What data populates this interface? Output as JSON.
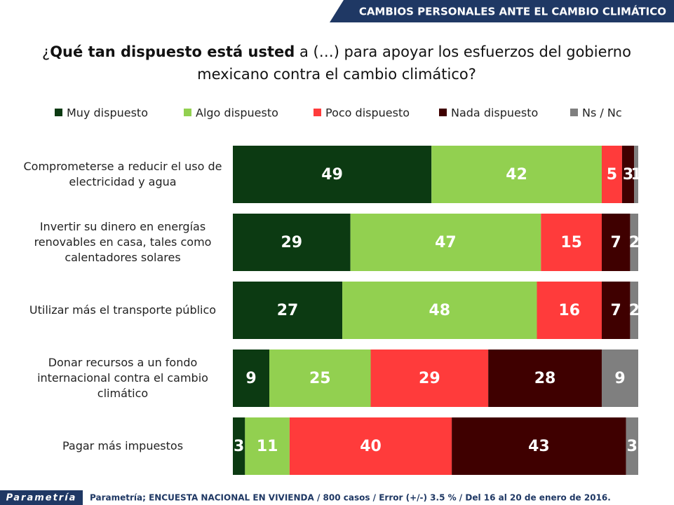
{
  "header": "CAMBIOS PERSONALES ANTE EL CAMBIO CLIMÁTICO",
  "footer": {
    "logo": "Parametría",
    "source": "Parametría; ENCUESTA NACIONAL EN VIVIENDA / 800 casos / Error (+/-) 3.5 % / Del 16 al 20 de enero de 2016."
  },
  "chart_data": {
    "type": "stacked_bar_horizontal",
    "title_segments": [
      {
        "text": "¿",
        "bold": false
      },
      {
        "text": "Qué tan dispuesto está usted",
        "bold": true
      },
      {
        "text": " a (…) para apoyar los esfuerzos del gobierno mexicano contra el cambio climático?",
        "bold": false
      }
    ],
    "categories": [
      "Comprometerse a reducir el uso de electricidad y agua",
      "Invertir su dinero en energías renovables en casa, tales como calentadores solares",
      "Utilizar más el transporte público",
      "Donar recursos a un fondo internacional contra el cambio climático",
      "Pagar más impuestos"
    ],
    "xlim": [
      0,
      100
    ],
    "series": [
      {
        "name": "Muy dispuesto",
        "color": "#0c3a12",
        "values": [
          49,
          29,
          27,
          9,
          3
        ]
      },
      {
        "name": "Algo dispuesto",
        "color": "#92d050",
        "values": [
          42,
          47,
          48,
          25,
          11
        ]
      },
      {
        "name": "Poco dispuesto",
        "color": "#ff3b3b",
        "values": [
          5,
          15,
          16,
          29,
          40
        ]
      },
      {
        "name": "Nada dispuesto",
        "color": "#3f0000",
        "values": [
          3,
          7,
          7,
          28,
          43
        ]
      },
      {
        "name": "Ns / Nc",
        "color": "#7f7f7f",
        "values": [
          1,
          2,
          2,
          9,
          3
        ]
      }
    ]
  }
}
